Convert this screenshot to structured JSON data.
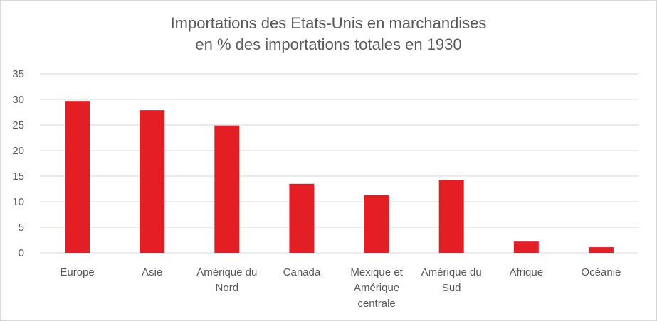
{
  "chart_data": {
    "type": "bar",
    "title_lines": [
      "Importations des Etats-Unis en marchandises",
      "en % des importations totales en 1930"
    ],
    "categories": [
      [
        "Europe"
      ],
      [
        "Asie"
      ],
      [
        "Amérique du",
        "Nord"
      ],
      [
        "Canada"
      ],
      [
        "Mexique et",
        "Amérique",
        "centrale"
      ],
      [
        "Amérique du",
        "Sud"
      ],
      [
        "Afrique"
      ],
      [
        "Océanie"
      ]
    ],
    "values": [
      29.7,
      27.9,
      24.9,
      13.5,
      11.3,
      14.2,
      2.2,
      1.1
    ],
    "ylim": [
      0,
      35
    ],
    "yticks": [
      "0",
      "5",
      "10",
      "15",
      "20",
      "25",
      "30",
      "35"
    ],
    "grid": true,
    "legend": "none",
    "bar_color": "#e31e24",
    "grid_color": "#d9d9d9",
    "text_color": "#595959"
  }
}
